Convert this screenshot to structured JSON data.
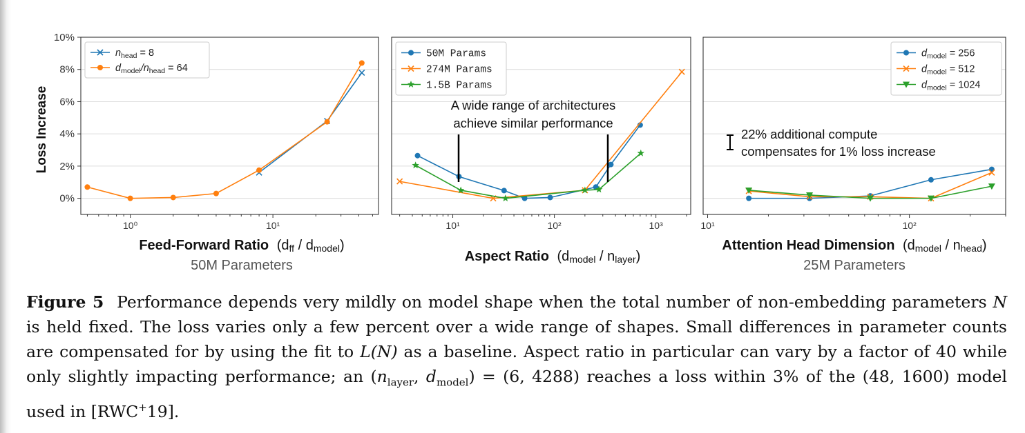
{
  "chart_data": [
    {
      "type": "line",
      "ylabel": "Loss Increase",
      "xlabel": "Feed-Forward Ratio",
      "xlabel_unit": "(d",
      "xlabel_unit_sub": "ff",
      "xlabel_unit_mid": " / d",
      "xlabel_unit_sub2": "model",
      "xlabel_unit_end": ")",
      "subtitle": "50M Parameters",
      "xscale": "log",
      "xlim": [
        0.45,
        55
      ],
      "ylim": [
        -1.0,
        10.0
      ],
      "yticks": [
        "0%",
        "2%",
        "4%",
        "6%",
        "8%",
        "10%"
      ],
      "ytick_values": [
        0,
        2,
        4,
        6,
        8,
        10
      ],
      "xticks": [
        "10⁰",
        "10¹"
      ],
      "xtick_values": [
        1,
        10
      ],
      "grid": true,
      "legend_position": "top-left",
      "series": [
        {
          "name_main": "n",
          "name_sub": "head",
          "name_rest": " = 8",
          "color": "#1f77b4",
          "marker": "x",
          "x": [
            8,
            24,
            42
          ],
          "y": [
            1.6,
            4.8,
            7.8
          ]
        },
        {
          "name_main": "d",
          "name_sub": "model",
          "name_mid": "/n",
          "name_sub2": "head",
          "name_rest": " = 64",
          "color": "#ff7f0e",
          "marker": "o",
          "x": [
            0.5,
            1,
            2,
            4,
            8,
            24,
            42
          ],
          "y": [
            0.7,
            0.0,
            0.05,
            0.3,
            1.75,
            4.75,
            8.4
          ]
        }
      ]
    },
    {
      "type": "line",
      "xlabel": "Aspect Ratio",
      "xlabel_unit": "(d",
      "xlabel_unit_sub": "model",
      "xlabel_unit_mid": " / n",
      "xlabel_unit_sub2": "layer",
      "xlabel_unit_end": ")",
      "xscale": "log",
      "xlim": [
        2.5,
        2200
      ],
      "ylim": [
        -1.0,
        10.0
      ],
      "xticks": [
        "10¹",
        "10²",
        "10³"
      ],
      "xtick_values": [
        10,
        100,
        1000
      ],
      "grid": true,
      "legend_position": "top-left",
      "annotation": [
        "A wide range of architectures",
        "achieve similar performance"
      ],
      "series": [
        {
          "name": "50M Params",
          "color": "#1f77b4",
          "marker": "o",
          "x": [
            4.5,
            11.5,
            32,
            51,
            91,
            256,
            360,
            700
          ],
          "y": [
            2.65,
            1.35,
            0.48,
            0.0,
            0.05,
            0.7,
            2.1,
            4.55
          ]
        },
        {
          "name": "274M Params",
          "color": "#ff7f0e",
          "marker": "x",
          "x": [
            3,
            25,
            200,
            1800
          ],
          "y": [
            1.05,
            0.0,
            0.5,
            7.85
          ]
        },
        {
          "name": "1.5B Params",
          "color": "#2ca02c",
          "marker": "*",
          "x": [
            4.3,
            12,
            33,
            200,
            275,
            710
          ],
          "y": [
            2.05,
            0.5,
            0.0,
            0.5,
            0.55,
            2.8
          ]
        }
      ]
    },
    {
      "type": "line",
      "xlabel": "Attention Head Dimension",
      "xlabel_unit": "(d",
      "xlabel_unit_sub": "model",
      "xlabel_unit_mid": " / n",
      "xlabel_unit_sub2": "head",
      "xlabel_unit_end": ")",
      "subtitle": "25M Parameters",
      "xscale": "log",
      "xlim": [
        9.5,
        300
      ],
      "ylim": [
        -1.0,
        10.0
      ],
      "xticks": [
        "10¹",
        "10²"
      ],
      "xtick_values": [
        10,
        100
      ],
      "grid": true,
      "legend_position": "top-right",
      "annotation": [
        "22% additional compute",
        "compensates for 1% loss increase"
      ],
      "series": [
        {
          "name_main": "d",
          "name_sub": "model",
          "name_rest": " = 256",
          "color": "#1f77b4",
          "marker": "o",
          "x": [
            16,
            32,
            64,
            128,
            256
          ],
          "y": [
            0.0,
            0.0,
            0.15,
            1.15,
            1.8
          ]
        },
        {
          "name_main": "d",
          "name_sub": "model",
          "name_rest": " = 512",
          "color": "#ff7f0e",
          "marker": "x",
          "x": [
            16,
            32,
            64,
            128,
            256
          ],
          "y": [
            0.45,
            0.1,
            0.1,
            0.0,
            1.6
          ]
        },
        {
          "name_main": "d",
          "name_sub": "model",
          "name_rest": " = 1024",
          "color": "#2ca02c",
          "marker": "v",
          "x": [
            16,
            32,
            64,
            128,
            256
          ],
          "y": [
            0.5,
            0.2,
            0.0,
            0.0,
            0.75
          ]
        }
      ]
    }
  ],
  "caption": {
    "figure_label": "Figure 5",
    "p1": "Performance depends very mildly on model shape when the total number of non-embedding parameters ",
    "N": "N",
    "p2": " is held fixed. The loss varies only a few percent over a wide range of shapes. Small differences in parameter counts are compensated for by using the fit to ",
    "LN": "L(N)",
    "p3": " as a baseline. Aspect ratio in particular can vary by a factor of 40 while only slightly impacting performance; an (",
    "n": "n",
    "n_sub": "layer",
    "comma": ", ",
    "d": "d",
    "d_sub": "model",
    "p4": ") = (6, 4288) reaches a loss within 3% of the (48, 1600) model used in [RWC",
    "plus": "+",
    "p5": "19]."
  }
}
